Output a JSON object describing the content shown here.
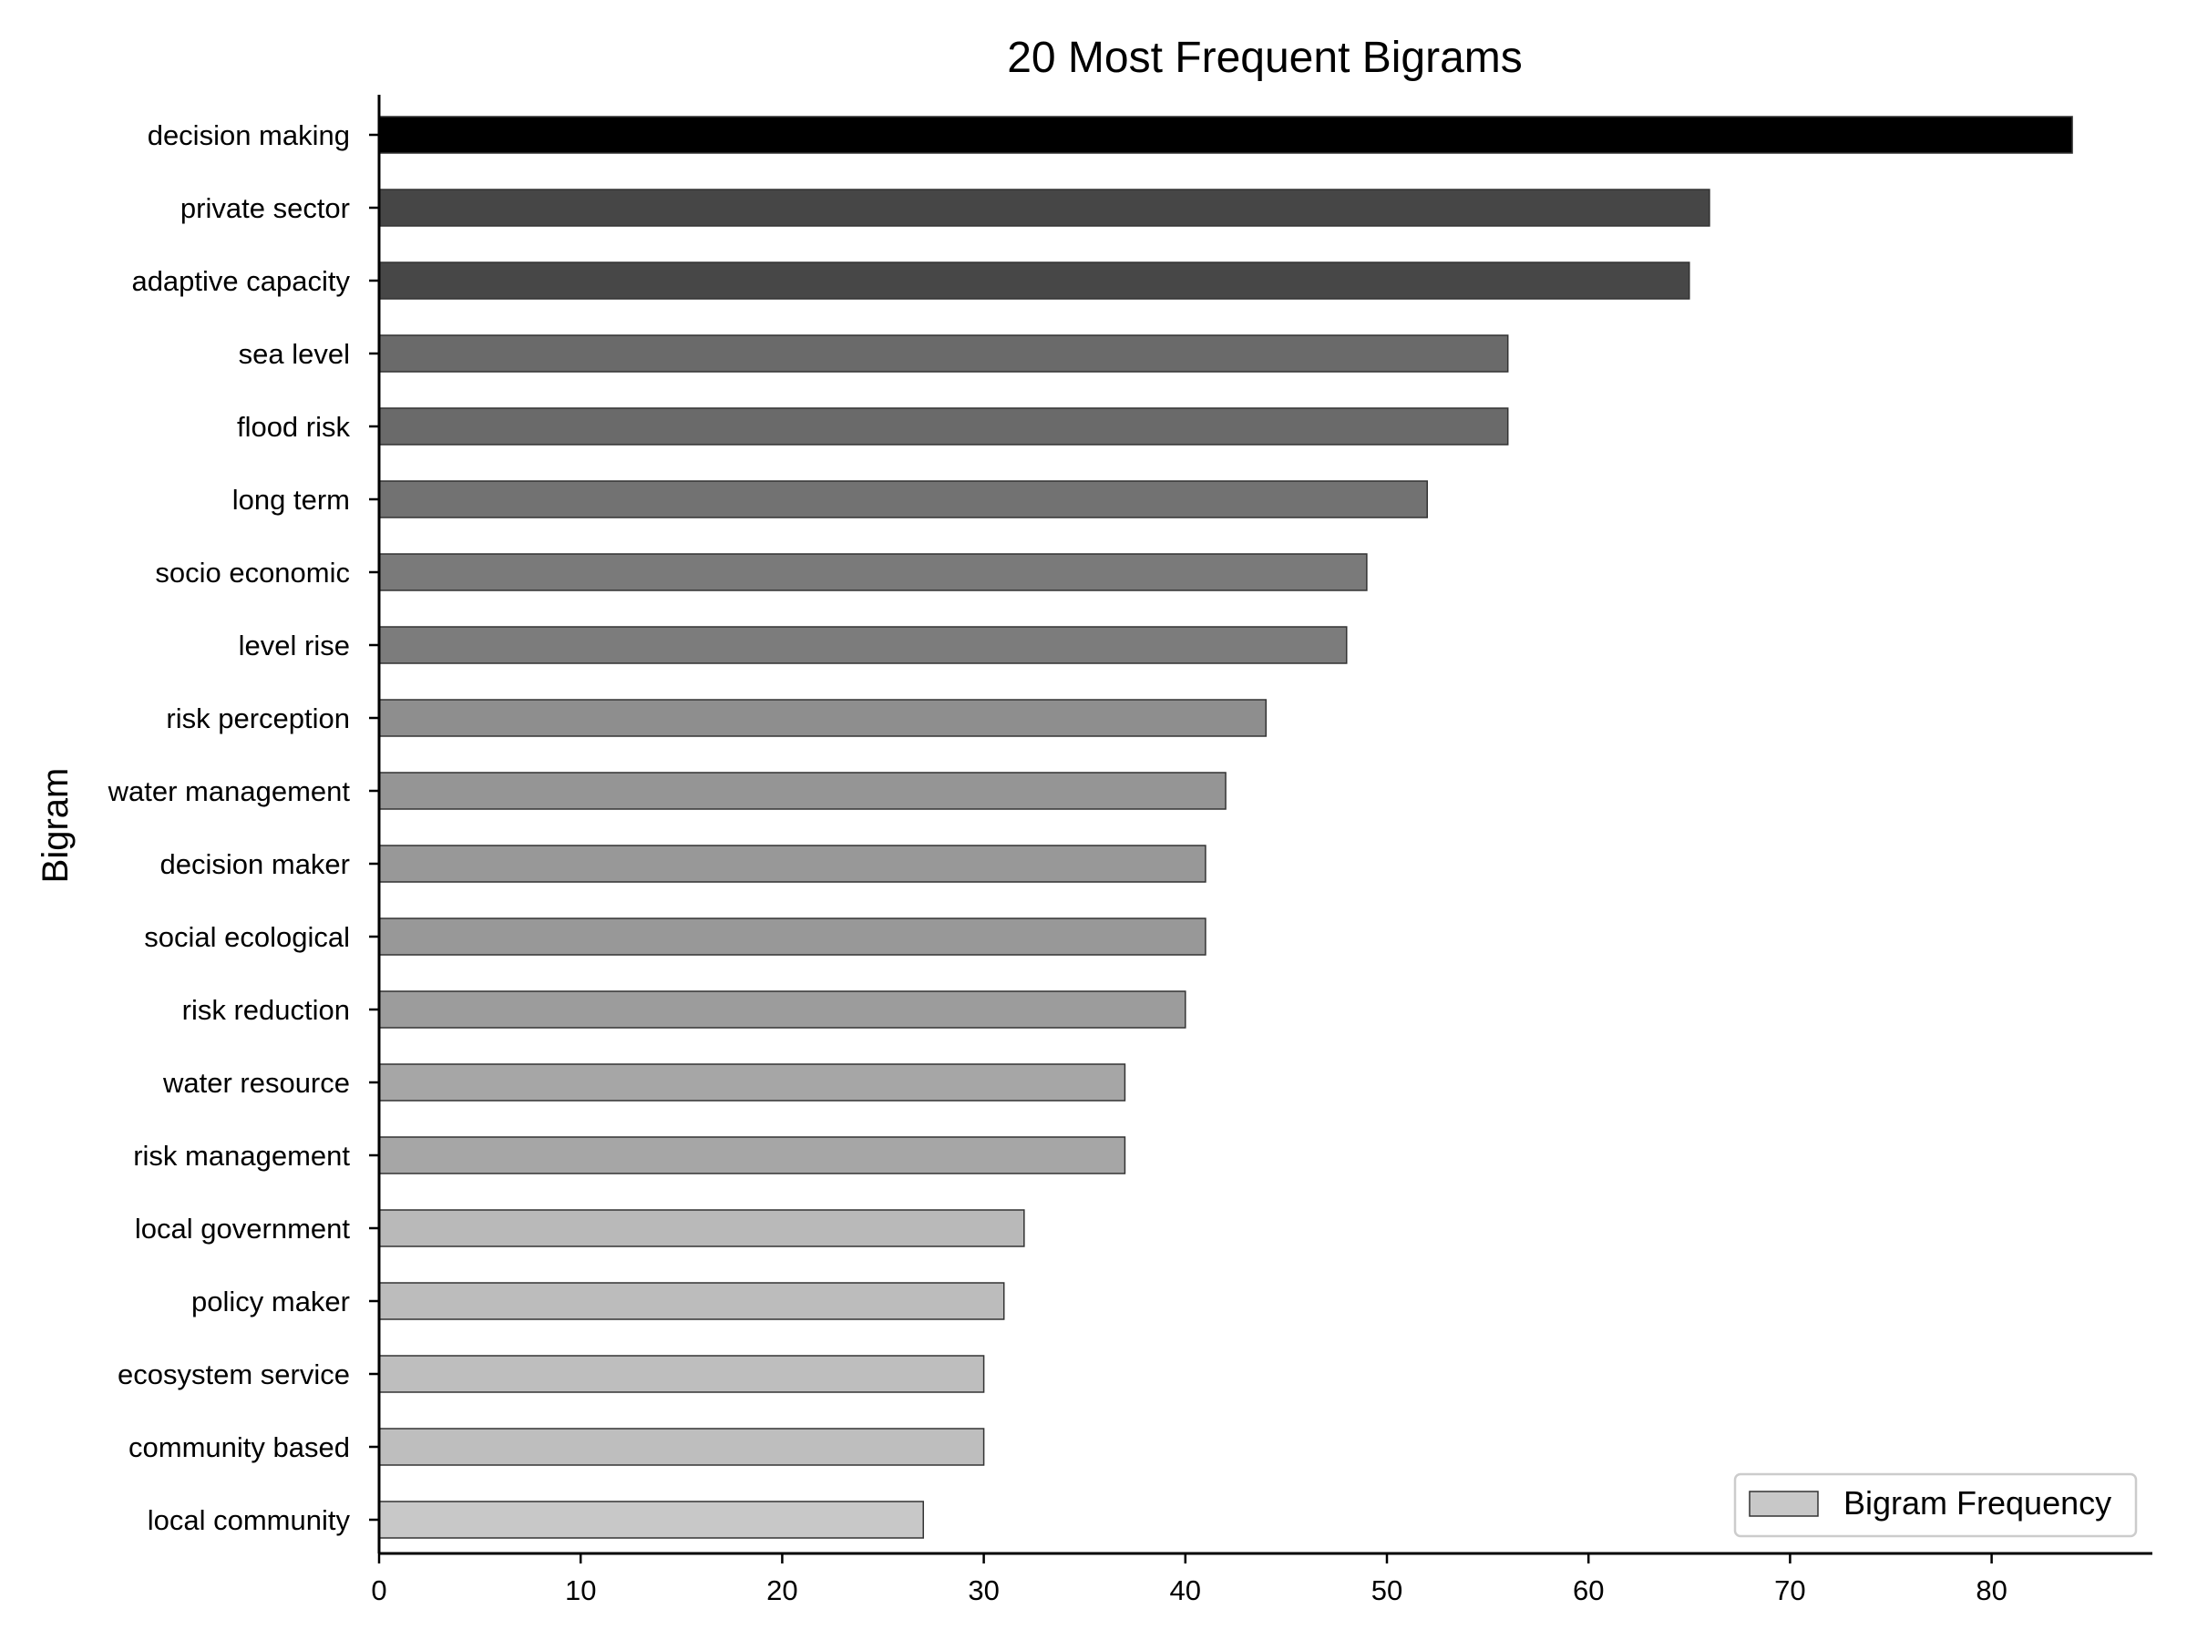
{
  "chart_data": {
    "type": "bar",
    "orientation": "horizontal",
    "title": "20 Most Frequent Bigrams",
    "xlabel": "",
    "ylabel": "Bigram",
    "xlim": [
      0,
      88
    ],
    "xticks": [
      0,
      10,
      20,
      30,
      40,
      50,
      60,
      70,
      80
    ],
    "grid": false,
    "legend": {
      "position": "bottom-right",
      "entries": [
        {
          "label": "Bigram Frequency",
          "color": "#c8c8c8"
        }
      ]
    },
    "categories": [
      "decision making",
      "private sector",
      "adaptive capacity",
      "sea level",
      "flood risk",
      "long term",
      "socio economic",
      "level rise",
      "risk perception",
      "water management",
      "decision maker",
      "social ecological",
      "risk reduction",
      "water resource",
      "risk management",
      "local government",
      "policy maker",
      "ecosystem service",
      "community based",
      "local community"
    ],
    "values": [
      84,
      66,
      65,
      56,
      56,
      52,
      49,
      48,
      44,
      42,
      41,
      41,
      40,
      37,
      37,
      32,
      31,
      30,
      30,
      27
    ],
    "series": [
      {
        "name": "Bigram Frequency",
        "values": [
          84,
          66,
          65,
          56,
          56,
          52,
          49,
          48,
          44,
          42,
          41,
          41,
          40,
          37,
          37,
          32,
          31,
          30,
          30,
          27
        ]
      }
    ],
    "bar_colors": [
      "#000000",
      "#464646",
      "#474747",
      "#6a6a6a",
      "#6a6a6a",
      "#727272",
      "#7a7a7a",
      "#7c7c7c",
      "#8e8e8e",
      "#959595",
      "#989898",
      "#989898",
      "#9c9c9c",
      "#a6a6a6",
      "#a6a6a6",
      "#b9b9b9",
      "#bcbcbc",
      "#bebebe",
      "#bebebe",
      "#c8c8c8"
    ],
    "bar_edge_color": "#333333"
  }
}
